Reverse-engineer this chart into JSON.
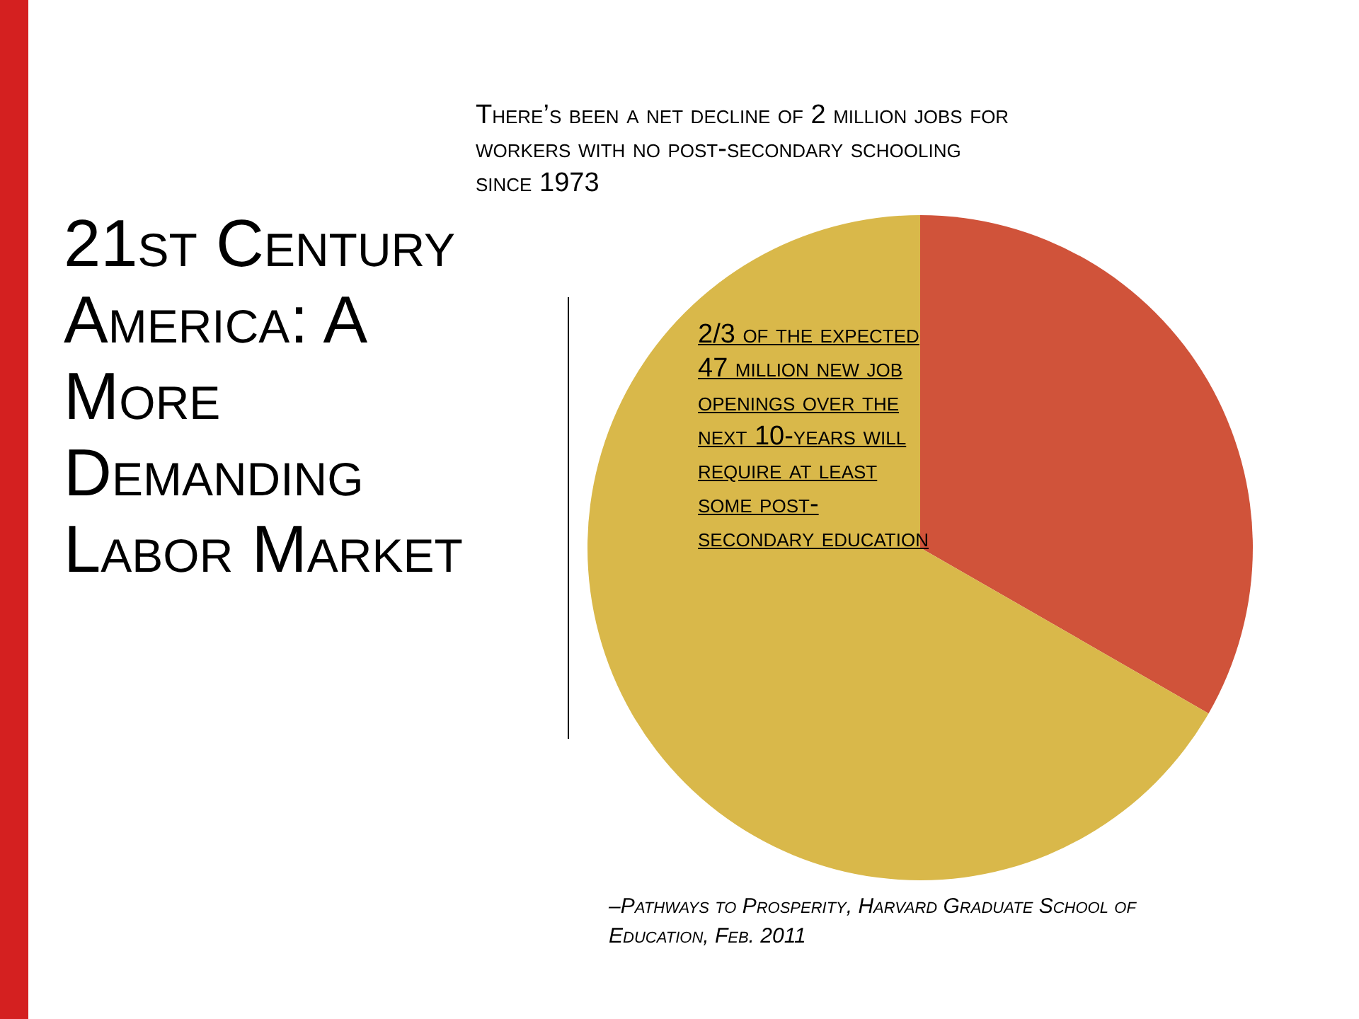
{
  "chart_data": {
    "type": "pie",
    "title": "21st Century America: A More Demanding Labor Market",
    "categories": [
      null,
      null
    ],
    "values": [
      33.3,
      66.7
    ],
    "colors": [
      "#d0533a",
      "#d9b84a"
    ],
    "legend": false,
    "annotations": [
      "There’s been a net decline of 2 million jobs for workers with no post-secondary schooling since 1973",
      "2/3 of the expected 47 million new job openings over the next 10-years will require at least some post-secondary education",
      "–Pathways to Prosperity, Harvard Graduate School of Education, Feb. 2011"
    ]
  }
}
